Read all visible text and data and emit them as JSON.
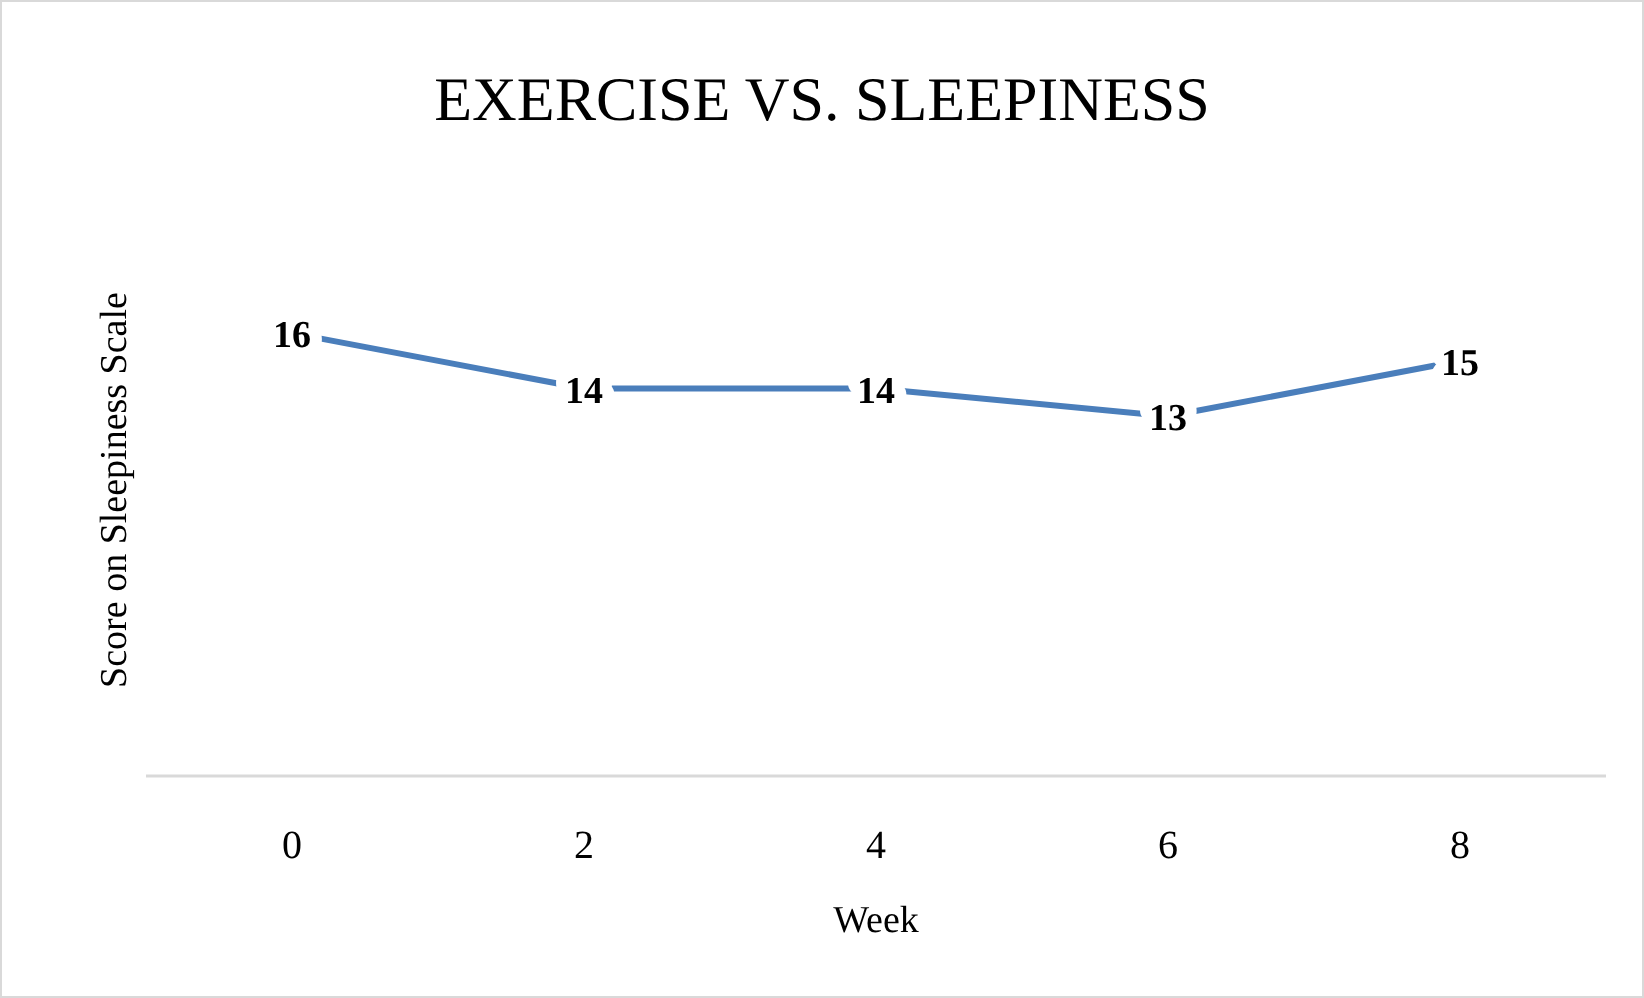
{
  "chart_data": {
    "type": "line",
    "title": "EXERCISE VS. SLEEPINESS",
    "xlabel": "Week",
    "ylabel": "Score on Sleepiness Scale",
    "categories": [
      "0",
      "2",
      "4",
      "6",
      "8"
    ],
    "series": [
      {
        "color": "#4a7ebb",
        "values": [
          16,
          14,
          14,
          13,
          15
        ]
      }
    ],
    "data_labels": true,
    "line_style": "solid",
    "tick_labels": "x"
  }
}
